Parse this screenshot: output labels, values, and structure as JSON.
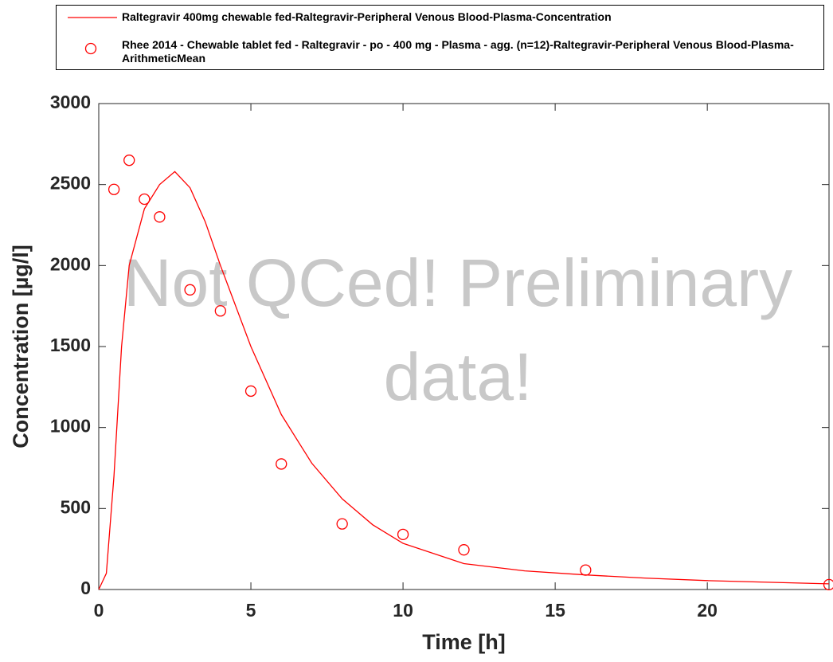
{
  "chart_data": {
    "type": "line",
    "xlabel": "Time [h]",
    "ylabel": "Concentration [µg/l]",
    "xlim": [
      0,
      24
    ],
    "ylim": [
      0,
      3000
    ],
    "xticks": [
      0,
      5,
      10,
      15,
      20
    ],
    "yticks": [
      0,
      500,
      1000,
      1500,
      2000,
      2500,
      3000
    ],
    "watermark": [
      "Not QCed! Preliminary",
      "data!"
    ],
    "series": [
      {
        "name": "Raltegravir 400mg chewable fed-Raltegravir-Peripheral Venous Blood-Plasma-Concentration",
        "type": "line",
        "color": "#ff0000",
        "x": [
          0,
          0.25,
          0.5,
          0.75,
          1,
          1.5,
          2,
          2.5,
          3,
          3.5,
          4,
          4.5,
          5,
          6,
          7,
          8,
          9,
          10,
          12,
          14,
          16,
          18,
          20,
          22,
          24
        ],
        "values": [
          0,
          100,
          700,
          1500,
          2000,
          2350,
          2500,
          2580,
          2480,
          2270,
          2000,
          1750,
          1500,
          1080,
          780,
          560,
          400,
          285,
          160,
          115,
          90,
          70,
          55,
          45,
          35
        ]
      },
      {
        "name": "Rhee 2014 - Chewable tablet fed - Raltegravir - po - 400 mg - Plasma - agg. (n=12)-Raltegravir-Peripheral Venous Blood-Plasma-ArithmeticMean",
        "type": "scatter",
        "color": "#ff0000",
        "x": [
          0.5,
          1,
          1.5,
          2,
          3,
          4,
          5,
          6,
          8,
          10,
          12,
          16,
          24
        ],
        "values": [
          2470,
          2650,
          2410,
          2300,
          1850,
          1720,
          1225,
          775,
          405,
          340,
          245,
          120,
          30
        ]
      }
    ]
  }
}
